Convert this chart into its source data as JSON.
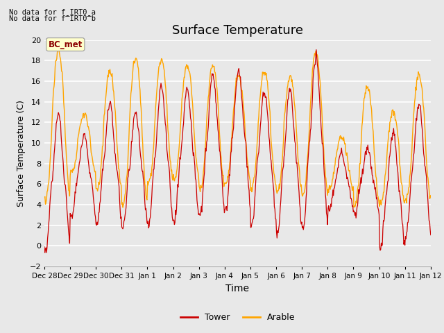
{
  "title": "Surface Temperature",
  "xlabel": "Time",
  "ylabel": "Surface Temperature (C)",
  "ylim": [
    -2,
    20
  ],
  "yticks": [
    -2,
    0,
    2,
    4,
    6,
    8,
    10,
    12,
    14,
    16,
    18,
    20
  ],
  "xtick_labels": [
    "Dec 28",
    "Dec 29",
    "Dec 30",
    "Dec 31",
    "Jan 1",
    "Jan 2",
    "Jan 3",
    "Jan 4",
    "Jan 5",
    "Jan 6",
    "Jan 7",
    "Jan 8",
    "Jan 9",
    "Jan 10",
    "Jan 11",
    "Jan 12"
  ],
  "annotation_line1": "No data for f_IRT0_a",
  "annotation_line2": "No data for f¯IRT0¯b",
  "box_label": "BC_met",
  "tower_color": "#cc0000",
  "arable_color": "#ffa500",
  "legend_tower": "Tower",
  "legend_arable": "Arable",
  "bg_color": "#e8e8e8",
  "plot_bg_color": "#e8e8e8",
  "grid_color": "#ffffff",
  "title_fontsize": 13,
  "axis_fontsize": 9,
  "tick_fontsize": 8
}
